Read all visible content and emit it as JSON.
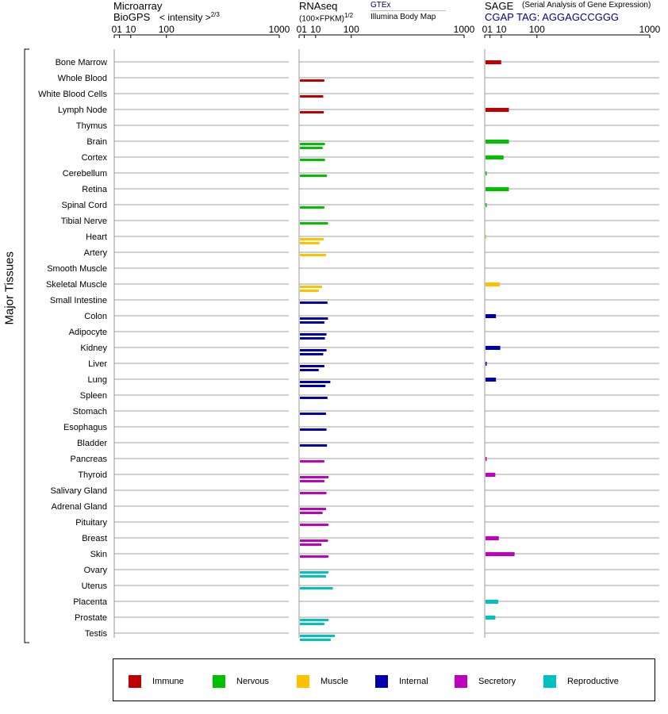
{
  "panels": {
    "microarray": {
      "title_line1": "Microarray",
      "title_line2": "BioGPS",
      "scale_label": "< intensity >",
      "scale_exp": "2/3"
    },
    "rnaseq": {
      "title_line1": "RNAseq",
      "title_line2": "(100×FPKM)",
      "scale_exp": "1/2",
      "source1": "GTEx",
      "source2": "Illumina Body Map"
    },
    "sage": {
      "title": "SAGE",
      "subtitle": "(Serial Analysis of Gene Expression)",
      "tag": "CGAP TAG: AGGAGCCGGG"
    }
  },
  "group_label": "Major Tissues",
  "colors": {
    "Immune": "#c00000",
    "Nervous": "#00c000",
    "Muscle": "#ffc000",
    "Internal": "#0000b0",
    "Secretory": "#c000c0",
    "Reproductive": "#00c0c0"
  },
  "legend": [
    {
      "name": "Immune",
      "color": "#c00000"
    },
    {
      "name": "Nervous",
      "color": "#00c000"
    },
    {
      "name": "Muscle",
      "color": "#ffc000"
    },
    {
      "name": "Internal",
      "color": "#0000b0"
    },
    {
      "name": "Secretory",
      "color": "#c000c0"
    },
    {
      "name": "Reproductive",
      "color": "#00c0c0"
    }
  ],
  "chart_data": {
    "type": "bar",
    "orientation": "horizontal",
    "axis_ticks": [
      "0",
      "1",
      "10",
      "100",
      "1000"
    ],
    "scale_note": "x-axis shows value^(1/2)",
    "tissues": [
      {
        "name": "Bone Marrow",
        "group": "Immune",
        "rnaseq": [],
        "sage": 9
      },
      {
        "name": "Whole Blood",
        "group": "Immune",
        "rnaseq": [
          22
        ],
        "sage": null
      },
      {
        "name": "White Blood Cells",
        "group": "Immune",
        "rnaseq": [
          20
        ],
        "sage": null
      },
      {
        "name": "Lymph Node",
        "group": "Immune",
        "rnaseq": [
          21
        ],
        "sage": 20
      },
      {
        "name": "Thymus",
        "group": "Immune",
        "rnaseq": [],
        "sage": null
      },
      {
        "name": "Brain",
        "group": "Nervous",
        "rnaseq": [
          23,
          19
        ],
        "sage": 20
      },
      {
        "name": "Cortex",
        "group": "Nervous",
        "rnaseq": [
          23
        ],
        "sage": 12
      },
      {
        "name": "Cerebellum",
        "group": "Nervous",
        "rnaseq": [
          27
        ],
        "sage": 0.05
      },
      {
        "name": "Retina",
        "group": "Nervous",
        "rnaseq": [],
        "sage": 20
      },
      {
        "name": "Spinal Cord",
        "group": "Nervous",
        "rnaseq": [
          22
        ],
        "sage": 0.05
      },
      {
        "name": "Tibial Nerve",
        "group": "Nervous",
        "rnaseq": [
          29
        ],
        "sage": null
      },
      {
        "name": "Heart",
        "group": "Muscle",
        "rnaseq": [
          21,
          14
        ],
        "sage": 0.02
      },
      {
        "name": "Artery",
        "group": "Muscle",
        "rnaseq": [
          25
        ],
        "sage": null
      },
      {
        "name": "Smooth Muscle",
        "group": "Muscle",
        "rnaseq": [],
        "sage": null
      },
      {
        "name": "Skeletal Muscle",
        "group": "Muscle",
        "rnaseq": [
          18,
          13
        ],
        "sage": 7.5
      },
      {
        "name": "Small Intestine",
        "group": "Internal",
        "rnaseq": [
          28
        ],
        "sage": null
      },
      {
        "name": "Colon",
        "group": "Internal",
        "rnaseq": [
          29,
          22
        ],
        "sage": 4
      },
      {
        "name": "Adipocyte",
        "group": "Internal",
        "rnaseq": [
          26,
          23
        ],
        "sage": null
      },
      {
        "name": "Kidney",
        "group": "Internal",
        "rnaseq": [
          26,
          20
        ],
        "sage": 8
      },
      {
        "name": "Liver",
        "group": "Internal",
        "rnaseq": [
          22,
          13
        ],
        "sage": 0.05
      },
      {
        "name": "Lung",
        "group": "Internal",
        "rnaseq": [
          34,
          24
        ],
        "sage": 4
      },
      {
        "name": "Spleen",
        "group": "Internal",
        "rnaseq": [
          28
        ],
        "sage": null
      },
      {
        "name": "Stomach",
        "group": "Internal",
        "rnaseq": [
          25
        ],
        "sage": null
      },
      {
        "name": "Esophagus",
        "group": "Internal",
        "rnaseq": [
          26
        ],
        "sage": null
      },
      {
        "name": "Bladder",
        "group": "Internal",
        "rnaseq": [
          27
        ],
        "sage": null
      },
      {
        "name": "Pancreas",
        "group": "Secretory",
        "rnaseq": [
          22
        ],
        "sage": 0.05
      },
      {
        "name": "Thyroid",
        "group": "Secretory",
        "rnaseq": [
          30,
          22
        ],
        "sage": 3.5
      },
      {
        "name": "Salivary Gland",
        "group": "Secretory",
        "rnaseq": [
          26
        ],
        "sage": null
      },
      {
        "name": "Adrenal Gland",
        "group": "Secretory",
        "rnaseq": [
          25,
          19
        ],
        "sage": null
      },
      {
        "name": "Pituitary",
        "group": "Secretory",
        "rnaseq": [
          30
        ],
        "sage": null
      },
      {
        "name": "Breast",
        "group": "Secretory",
        "rnaseq": [
          29,
          17
        ],
        "sage": 6.5
      },
      {
        "name": "Skin",
        "group": "Secretory",
        "rnaseq": [
          30
        ],
        "sage": 31
      },
      {
        "name": "Ovary",
        "group": "Reproductive",
        "rnaseq": [
          30,
          25
        ],
        "sage": null
      },
      {
        "name": "Uterus",
        "group": "Reproductive",
        "rnaseq": [
          40
        ],
        "sage": null
      },
      {
        "name": "Placenta",
        "group": "Reproductive",
        "rnaseq": [],
        "sage": 6
      },
      {
        "name": "Prostate",
        "group": "Reproductive",
        "rnaseq": [
          30,
          22
        ],
        "sage": 3.5
      },
      {
        "name": "Testis",
        "group": "Reproductive",
        "rnaseq": [
          45,
          35
        ],
        "sage": null
      }
    ]
  }
}
